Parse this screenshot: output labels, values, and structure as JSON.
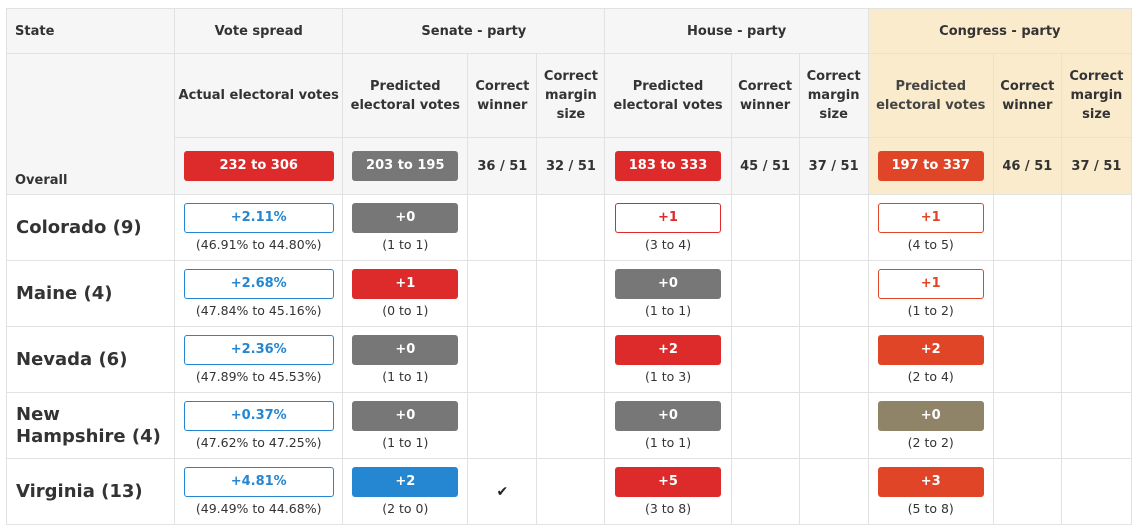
{
  "headers": {
    "state": "State",
    "vote_spread": "Vote spread",
    "senate": "Senate - party",
    "house": "House - party",
    "congress": "Congress - party"
  },
  "subheaders": {
    "overall": "Overall",
    "actual_ev": "Actual electoral votes",
    "predicted_ev": "Predicted electoral votes",
    "correct_winner": "Correct winner",
    "correct_margin": "Correct margin size"
  },
  "overall": {
    "actual": "232 to 306",
    "senate": {
      "predicted": "203 to 195",
      "winner": "36 / 51",
      "margin": "32 / 51"
    },
    "house": {
      "predicted": "183 to 333",
      "winner": "45 / 51",
      "margin": "37 / 51"
    },
    "congress": {
      "predicted": "197 to 337",
      "winner": "46 / 51",
      "margin": "37 / 51"
    }
  },
  "states": [
    {
      "name": "Colorado (9)",
      "spread": "+2.11%",
      "spread_detail": "(46.91% to 44.80%)",
      "senate": {
        "value": "+0",
        "detail": "(1 to 1)",
        "winner": ""
      },
      "house": {
        "value": "+1",
        "detail": "(3 to 4)"
      },
      "congress": {
        "value": "+1",
        "detail": "(4 to 5)"
      }
    },
    {
      "name": "Maine (4)",
      "spread": "+2.68%",
      "spread_detail": "(47.84% to 45.16%)",
      "senate": {
        "value": "+1",
        "detail": "(0 to 1)",
        "winner": ""
      },
      "house": {
        "value": "+0",
        "detail": "(1 to 1)"
      },
      "congress": {
        "value": "+1",
        "detail": "(1 to 2)"
      }
    },
    {
      "name": "Nevada (6)",
      "spread": "+2.36%",
      "spread_detail": "(47.89% to 45.53%)",
      "senate": {
        "value": "+0",
        "detail": "(1 to 1)",
        "winner": ""
      },
      "house": {
        "value": "+2",
        "detail": "(1 to 3)"
      },
      "congress": {
        "value": "+2",
        "detail": "(2 to 4)"
      }
    },
    {
      "name": "New Hampshire (4)",
      "spread": "+0.37%",
      "spread_detail": "(47.62% to 47.25%)",
      "senate": {
        "value": "+0",
        "detail": "(1 to 1)",
        "winner": ""
      },
      "house": {
        "value": "+0",
        "detail": "(1 to 1)"
      },
      "congress": {
        "value": "+0",
        "detail": "(2 to 2)"
      }
    },
    {
      "name": "Virginia (13)",
      "spread": "+4.81%",
      "spread_detail": "(49.49% to 44.68%)",
      "senate": {
        "value": "+2",
        "detail": "(2 to 0)",
        "winner": "✔"
      },
      "house": {
        "value": "+5",
        "detail": "(3 to 8)"
      },
      "congress": {
        "value": "+3",
        "detail": "(5 to 8)"
      }
    }
  ],
  "colors": {
    "red": "#dd2a2a",
    "grey": "#777777",
    "blue": "#2586d1",
    "orange": "#e04527",
    "olive": "#8f8468",
    "congress_bg": "#faebcd"
  }
}
